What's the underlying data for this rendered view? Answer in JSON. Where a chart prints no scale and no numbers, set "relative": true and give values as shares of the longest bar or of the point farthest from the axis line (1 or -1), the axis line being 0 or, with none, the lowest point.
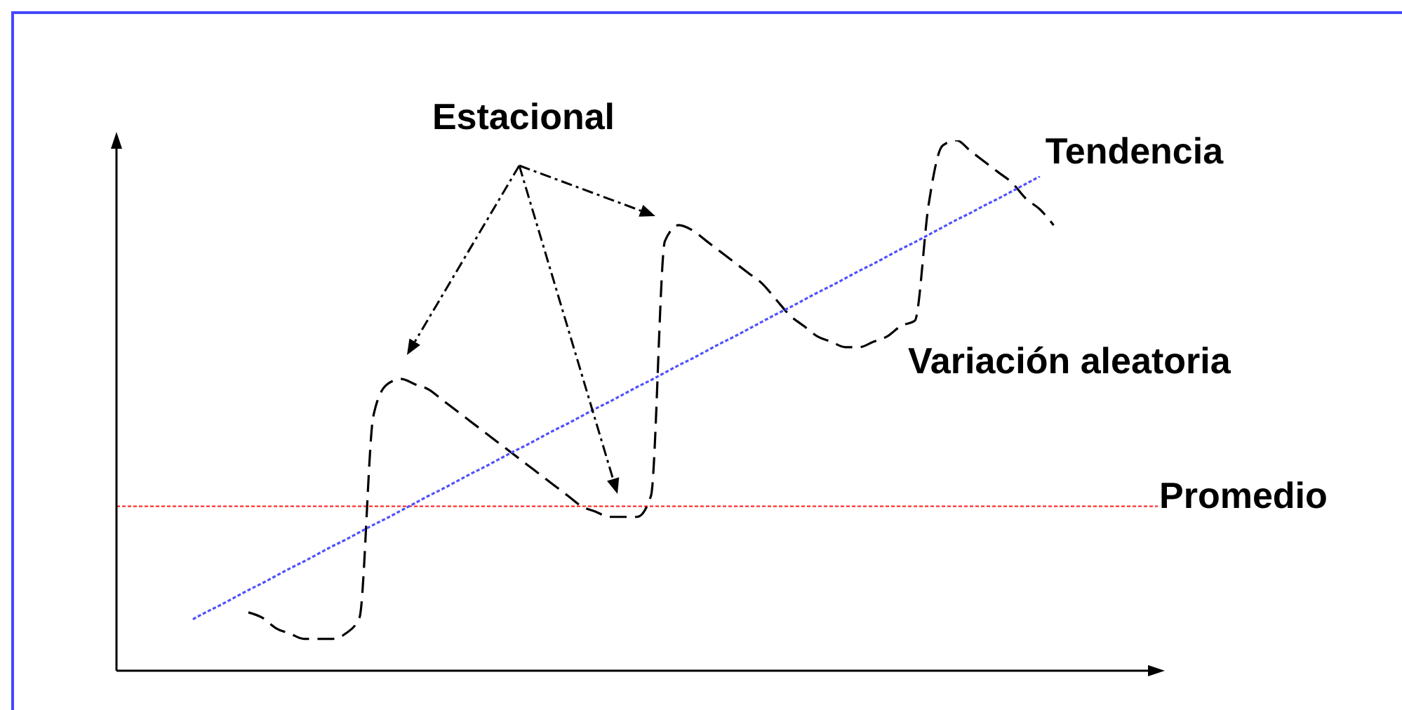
{
  "chart_data": {
    "type": "line",
    "relative": true,
    "marker": "none",
    "categories": [
      null,
      null,
      null,
      null,
      null,
      null,
      null,
      null,
      null,
      null,
      null,
      null,
      null,
      null,
      null,
      null,
      null,
      null,
      null,
      null,
      null,
      null,
      null,
      null,
      null,
      null,
      null,
      null,
      null,
      null,
      null,
      null,
      null,
      null,
      null,
      null,
      null,
      null,
      null,
      null,
      null,
      null,
      null,
      null,
      null,
      null,
      null,
      null,
      null,
      null,
      null,
      null,
      null,
      null,
      null,
      null,
      null,
      null,
      null,
      null,
      null,
      null,
      null,
      null,
      null,
      null,
      null,
      null,
      null,
      null,
      null,
      null,
      null,
      null,
      null
    ],
    "series": [
      {
        "color": "#000000",
        "line_style": "dashed",
        "values": [
          null,
          null,
          null,
          null,
          null,
          null,
          null,
          null,
          null,
          0.11,
          0.1,
          0.08,
          0.07,
          0.06,
          0.06,
          0.06,
          0.07,
          0.1,
          0.48,
          0.54,
          0.55,
          0.54,
          0.53,
          0.51,
          0.49,
          0.47,
          0.45,
          0.43,
          0.41,
          0.39,
          0.37,
          0.35,
          0.33,
          0.31,
          0.3,
          0.29,
          0.29,
          0.29,
          0.33,
          0.81,
          0.84,
          0.83,
          0.81,
          0.79,
          0.77,
          0.75,
          0.73,
          0.7,
          0.67,
          0.65,
          0.63,
          0.62,
          0.61,
          0.61,
          0.62,
          0.63,
          0.65,
          0.66,
          0.88,
          0.99,
          1,
          0.98,
          0.96,
          0.94,
          0.92,
          0.89,
          0.87,
          0.84,
          null,
          null,
          null,
          null,
          null,
          null,
          null
        ]
      },
      {
        "name": "Tendencia",
        "color": "#5050ff",
        "line_style": "dotted",
        "values": [
          null,
          null,
          null,
          null,
          null,
          0.097,
          0.111,
          0.124,
          0.138,
          0.152,
          0.165,
          0.179,
          0.193,
          0.206,
          0.22,
          0.234,
          0.247,
          0.261,
          0.275,
          0.288,
          0.302,
          0.316,
          0.33,
          0.343,
          0.357,
          0.371,
          0.384,
          0.398,
          0.412,
          0.425,
          0.439,
          0.453,
          0.466,
          0.48,
          0.494,
          0.507,
          0.521,
          0.535,
          0.548,
          0.562,
          0.576,
          0.589,
          0.603,
          0.617,
          0.63,
          0.644,
          0.658,
          0.672,
          0.685,
          0.699,
          0.713,
          0.726,
          0.74,
          0.754,
          0.767,
          0.781,
          0.795,
          0.808,
          0.822,
          0.836,
          0.85,
          0.863,
          0.877,
          0.89,
          0.904,
          0.918,
          0.932,
          null,
          null,
          null,
          null,
          null,
          null,
          null,
          null
        ]
      }
    ],
    "ref_lines": [
      {
        "axis": "y",
        "value": 0.31,
        "label": "Promedio",
        "color": "#ff3030",
        "line_style": "dotted"
      }
    ],
    "annotations": [
      "Estacional",
      "Variación aleatoria"
    ]
  }
}
